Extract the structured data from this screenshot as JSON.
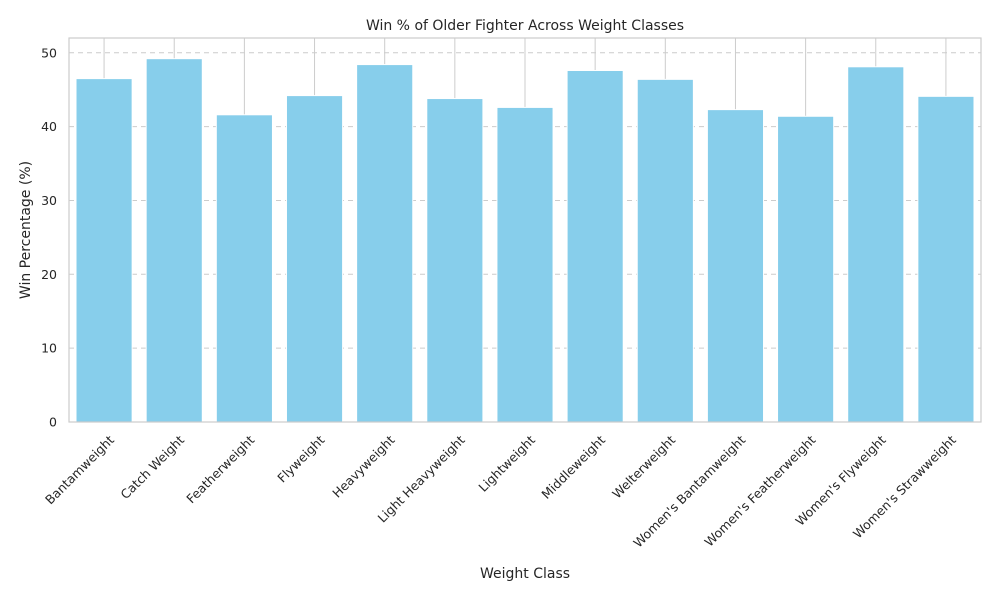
{
  "chart_data": {
    "type": "bar",
    "title": "Win % of Older Fighter Across Weight Classes",
    "xlabel": "Weight Class",
    "ylabel": "Win Percentage (%)",
    "categories": [
      "Bantamweight",
      "Catch Weight",
      "Featherweight",
      "Flyweight",
      "Heavyweight",
      "Light Heavyweight",
      "Lightweight",
      "Middleweight",
      "Welterweight",
      "Women's Bantamweight",
      "Women's Featherweight",
      "Women's Flyweight",
      "Women's Strawweight"
    ],
    "values": [
      46.5,
      49.2,
      41.6,
      44.2,
      48.4,
      43.8,
      42.6,
      47.6,
      46.4,
      42.3,
      41.4,
      48.1,
      44.1
    ],
    "ylim": [
      0,
      52
    ],
    "yticks": [
      0,
      10,
      20,
      30,
      40,
      50
    ],
    "grid": "y",
    "colors": {
      "bar": "#87ceeb",
      "grid": "#cccccc",
      "frame": "#cccccc",
      "text": "#262626"
    }
  }
}
